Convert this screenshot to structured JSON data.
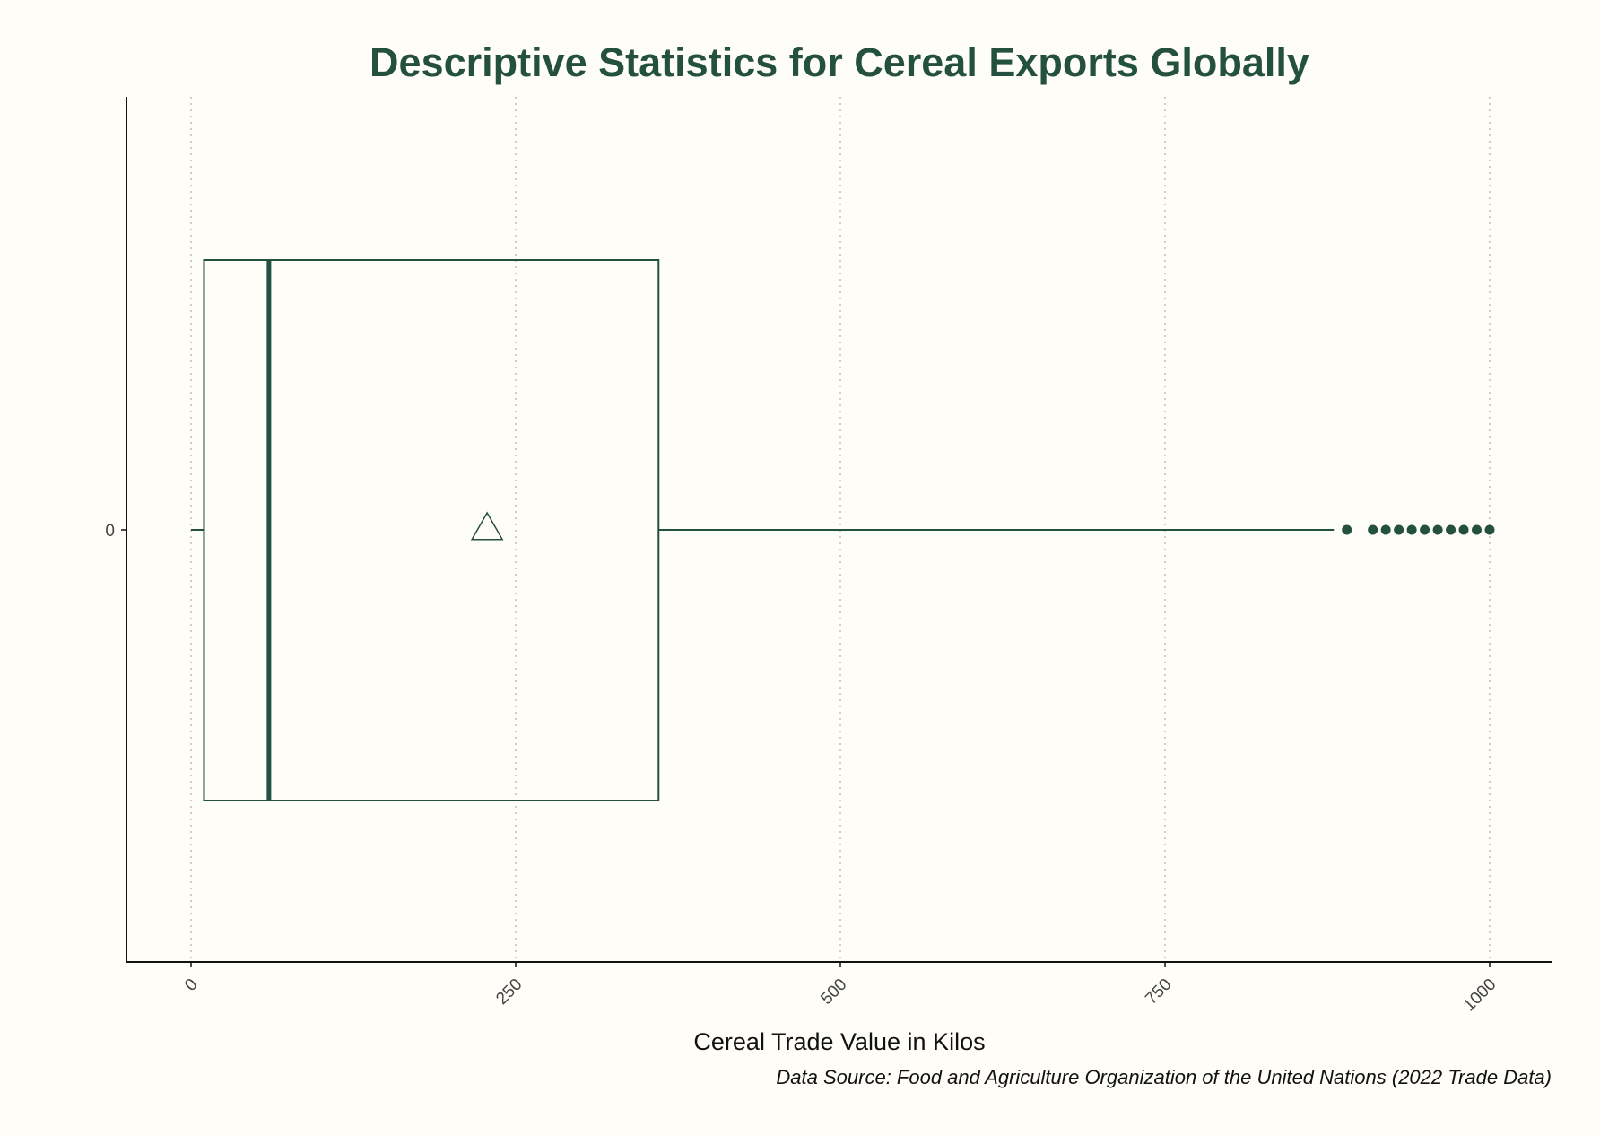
{
  "chart_data": {
    "type": "boxplot",
    "orientation": "horizontal",
    "title": "Descriptive Statistics for Cereal Exports Globally",
    "xlabel": "Cereal Trade Value in Kilos",
    "caption": "Data Source: Food and Agriculture Organization of the United Nations (2022 Trade Data)",
    "xlim": [
      -50,
      1050
    ],
    "x_ticks": [
      0,
      250,
      500,
      750,
      1000
    ],
    "x_tick_labels": [
      "0",
      "250",
      "500",
      "750",
      "1000"
    ],
    "y_tick_labels": [
      "0"
    ],
    "grid": "vertical dotted",
    "box": {
      "whisker_low": 0,
      "q1": 10,
      "median": 60,
      "mean": 228,
      "q3": 360,
      "whisker_high": 880
    },
    "outliers": [
      890,
      910,
      920,
      930,
      940,
      950,
      960,
      970,
      980,
      990,
      1000
    ],
    "colors": {
      "primary": "#24503f",
      "background": "#fffdf8",
      "grid": "#bdbdbd"
    }
  }
}
